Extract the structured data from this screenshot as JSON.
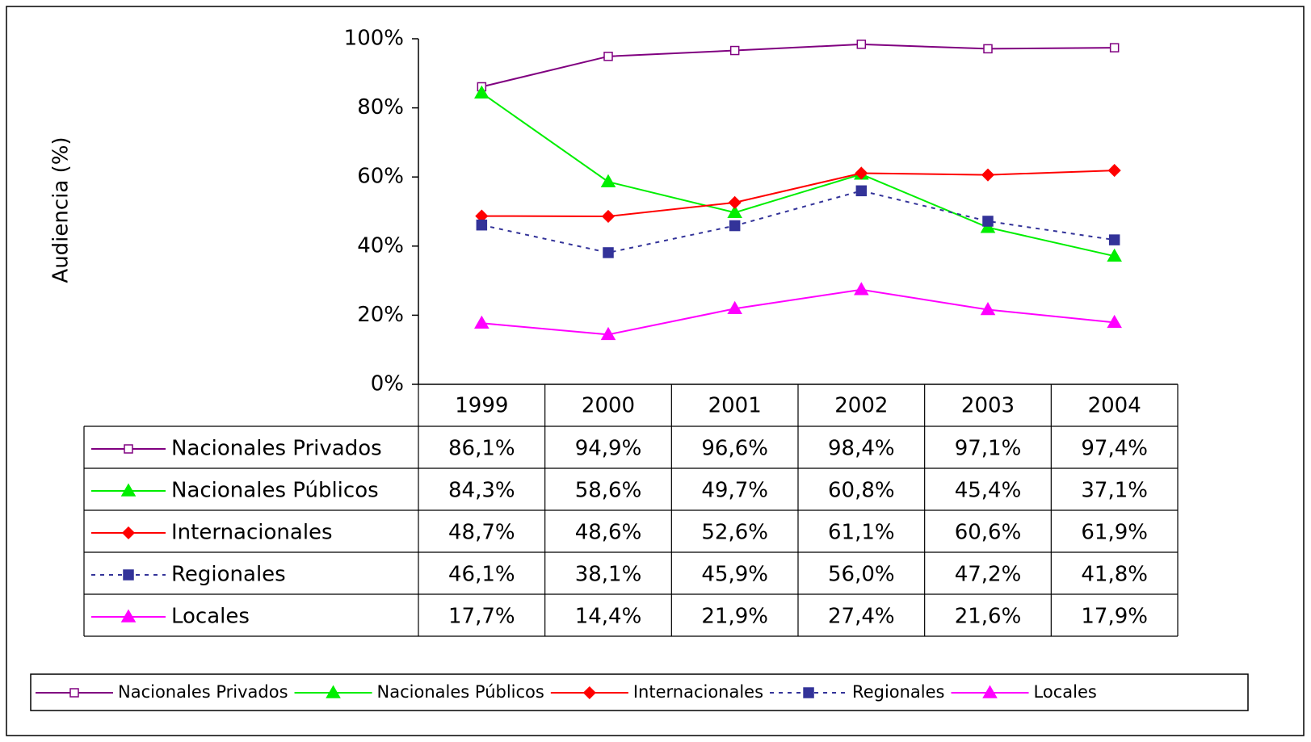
{
  "chart_data": {
    "type": "line",
    "y_label": "Audiencia (%)",
    "categories": [
      "1999",
      "2000",
      "2001",
      "2002",
      "2003",
      "2004"
    ],
    "ylim": [
      0,
      100
    ],
    "yticks": [
      {
        "value": 0,
        "label": "0%"
      },
      {
        "value": 20,
        "label": "20%"
      },
      {
        "value": 40,
        "label": "40%"
      },
      {
        "value": 60,
        "label": "60%"
      },
      {
        "value": 80,
        "label": "80%"
      },
      {
        "value": 100,
        "label": "100%"
      }
    ],
    "grid": false,
    "legend": "bottom",
    "series": [
      {
        "name": "Nacionales Privados",
        "color": "#800080",
        "marker": "square-open",
        "line_style": "solid",
        "values": [
          86.1,
          94.9,
          96.6,
          98.4,
          97.1,
          97.4
        ],
        "value_labels": [
          "86,1%",
          "94,9%",
          "96,6%",
          "98,4%",
          "97,1%",
          "97,4%"
        ]
      },
      {
        "name": "Nacionales Públicos",
        "color": "#00ee00",
        "marker": "triangle",
        "line_style": "solid",
        "values": [
          84.3,
          58.6,
          49.7,
          60.8,
          45.4,
          37.1
        ],
        "value_labels": [
          "84,3%",
          "58,6%",
          "49,7%",
          "60,8%",
          "45,4%",
          "37,1%"
        ]
      },
      {
        "name": "Internacionales",
        "color": "#ff0000",
        "marker": "diamond",
        "line_style": "solid",
        "values": [
          48.7,
          48.6,
          52.6,
          61.1,
          60.6,
          61.9
        ],
        "value_labels": [
          "48,7%",
          "48,6%",
          "52,6%",
          "61,1%",
          "60,6%",
          "61,9%"
        ]
      },
      {
        "name": "Regionales",
        "color": "#333399",
        "marker": "square",
        "line_style": "dotted",
        "values": [
          46.1,
          38.1,
          45.9,
          56.0,
          47.2,
          41.8
        ],
        "value_labels": [
          "46,1%",
          "38,1%",
          "45,9%",
          "56,0%",
          "47,2%",
          "41,8%"
        ]
      },
      {
        "name": "Locales",
        "color": "#ff00ff",
        "marker": "triangle",
        "line_style": "solid",
        "values": [
          17.7,
          14.4,
          21.9,
          27.4,
          21.6,
          17.9
        ],
        "value_labels": [
          "17,7%",
          "14,4%",
          "21,9%",
          "27,4%",
          "21,6%",
          "17,9%"
        ]
      }
    ]
  }
}
